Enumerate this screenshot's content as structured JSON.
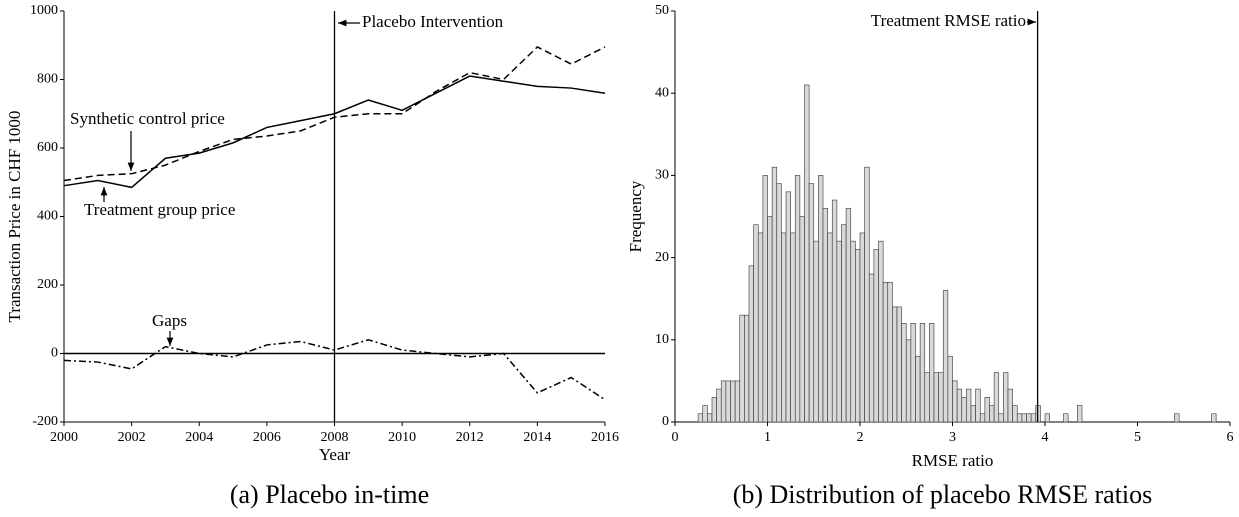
{
  "chart_data": [
    {
      "type": "line",
      "caption": "(a) Placebo in-time",
      "xlabel": "Year",
      "ylabel": "Transaction Price in CHF 1000",
      "x": [
        2000,
        2001,
        2002,
        2003,
        2004,
        2005,
        2006,
        2007,
        2008,
        2009,
        2010,
        2011,
        2012,
        2013,
        2014,
        2015,
        2016
      ],
      "series": [
        {
          "name": "Treatment group price",
          "color": "#000000",
          "linestyle": "solid",
          "values": [
            490,
            505,
            485,
            570,
            585,
            615,
            660,
            680,
            700,
            740,
            710,
            760,
            810,
            795,
            780,
            775,
            760
          ]
        },
        {
          "name": "Synthetic control price",
          "color": "#000000",
          "linestyle": "dashed",
          "values": [
            505,
            520,
            525,
            550,
            590,
            625,
            635,
            650,
            690,
            700,
            700,
            765,
            820,
            800,
            895,
            845,
            895
          ]
        },
        {
          "name": "Gaps",
          "color": "#000000",
          "linestyle": "dashdot",
          "values": [
            -20,
            -25,
            -45,
            20,
            0,
            -10,
            25,
            35,
            10,
            40,
            10,
            0,
            -10,
            0,
            -115,
            -70,
            -135
          ]
        }
      ],
      "intervention_x": 2008,
      "zero_line": true,
      "annotations": [
        "Placebo Intervention",
        "Synthetic control price",
        "Treatment group price",
        "Gaps"
      ],
      "xlim": [
        2000,
        2016
      ],
      "xticks": [
        2000,
        2002,
        2004,
        2006,
        2008,
        2010,
        2012,
        2014,
        2016
      ],
      "ylim": [
        -200,
        1000
      ],
      "yticks": [
        -200,
        0,
        200,
        400,
        600,
        800,
        1000
      ]
    },
    {
      "type": "histogram",
      "caption": "(b) Distribution of placebo RMSE ratios",
      "xlabel": "RMSE ratio",
      "ylabel": "Frequency",
      "color": "#d9d9d9",
      "edgecolor": "#333333",
      "bins": [
        0.25,
        0.3,
        0.35,
        0.4,
        0.45,
        0.5,
        0.55,
        0.6,
        0.65,
        0.7,
        0.75,
        0.8,
        0.85,
        0.9,
        0.95,
        1.0,
        1.05,
        1.1,
        1.15,
        1.2,
        1.25,
        1.3,
        1.35,
        1.4,
        1.45,
        1.5,
        1.55,
        1.6,
        1.65,
        1.7,
        1.75,
        1.8,
        1.85,
        1.9,
        1.95,
        2.0,
        2.05,
        2.1,
        2.15,
        2.2,
        2.25,
        2.3,
        2.35,
        2.4,
        2.45,
        2.5,
        2.55,
        2.6,
        2.65,
        2.7,
        2.75,
        2.8,
        2.85,
        2.9,
        2.95,
        3.0,
        3.05,
        3.1,
        3.15,
        3.2,
        3.25,
        3.3,
        3.35,
        3.4,
        3.45,
        3.5,
        3.55,
        3.6,
        3.65,
        3.7,
        3.75,
        3.8,
        3.85,
        3.9,
        3.95,
        4.0,
        4.05,
        4.1,
        4.15,
        4.2,
        4.25,
        4.3,
        4.35,
        4.4,
        4.45,
        4.5,
        4.55,
        4.6,
        4.65,
        4.7,
        4.75,
        4.8,
        4.85,
        4.9,
        4.95,
        5.0,
        5.05,
        5.1,
        5.15,
        5.2,
        5.25,
        5.3,
        5.35,
        5.4,
        5.45,
        5.5,
        5.55,
        5.6,
        5.65,
        5.7,
        5.75,
        5.8,
        5.85
      ],
      "values": [
        1,
        2,
        1,
        3,
        4,
        5,
        5,
        5,
        5,
        13,
        13,
        19,
        24,
        23,
        30,
        25,
        31,
        29,
        23,
        28,
        23,
        30,
        25,
        41,
        29,
        22,
        30,
        26,
        23,
        27,
        22,
        24,
        26,
        22,
        21,
        23,
        31,
        18,
        21,
        22,
        17,
        17,
        14,
        14,
        12,
        10,
        12,
        8,
        12,
        6,
        12,
        6,
        6,
        16,
        8,
        5,
        4,
        3,
        4,
        2,
        4,
        1,
        3,
        2,
        6,
        1,
        6,
        4,
        2,
        1,
        1,
        1,
        1,
        2,
        0,
        1,
        0,
        0,
        0,
        1,
        0,
        0,
        2,
        0,
        0,
        0,
        0,
        0,
        0,
        0,
        0,
        0,
        0,
        0,
        0,
        0,
        0,
        0,
        0,
        0,
        0,
        0,
        0,
        1,
        0,
        0,
        0,
        0,
        0,
        0,
        0,
        1
      ],
      "reference_x": 3.92,
      "annotations": [
        "Treatment RMSE ratio"
      ],
      "xlim": [
        0,
        6
      ],
      "xticks": [
        0,
        1,
        2,
        3,
        4,
        5,
        6
      ],
      "ylim": [
        0,
        50
      ],
      "yticks": [
        0,
        10,
        20,
        30,
        40,
        50
      ]
    }
  ]
}
